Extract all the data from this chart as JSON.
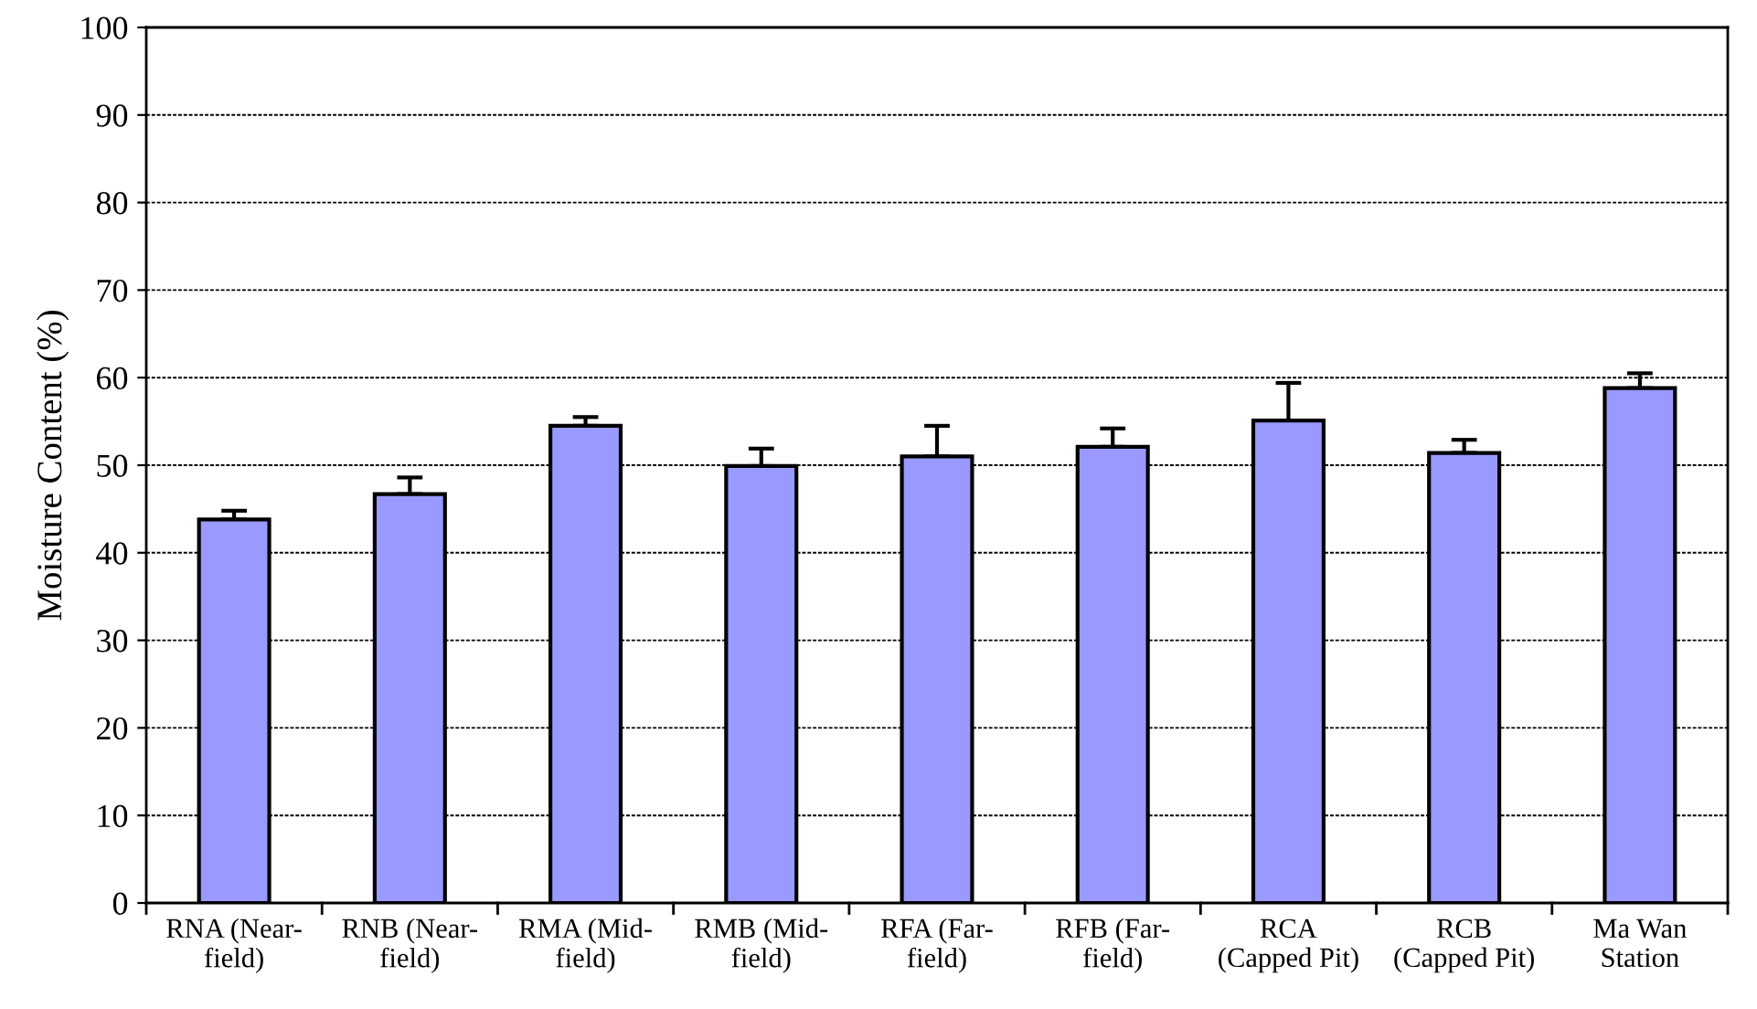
{
  "chart_data": {
    "type": "bar",
    "ylabel": "Moisture Content (%)",
    "categories": [
      "RNA (Near-\nfield)",
      "RNB (Near-\nfield)",
      "RMA (Mid-\nfield)",
      "RMB (Mid-\nfield)",
      "RFA (Far-\nfield)",
      "RFB (Far-\nfield)",
      "RCA\n(Capped Pit)",
      "RCB\n(Capped Pit)",
      "Ma Wan\nStation"
    ],
    "values": [
      43.8,
      46.7,
      54.5,
      49.9,
      51.0,
      52.1,
      55.1,
      51.4,
      58.8
    ],
    "errors": [
      [
        43.8,
        44.8
      ],
      [
        46.7,
        48.6
      ],
      [
        54.5,
        55.5
      ],
      [
        49.9,
        51.9
      ],
      [
        51.0,
        54.5
      ],
      [
        52.1,
        54.2
      ],
      [
        55.1,
        59.4
      ],
      [
        51.4,
        52.9
      ],
      [
        58.8,
        60.5
      ]
    ],
    "color": "#9999ff",
    "ylim": [
      0,
      100
    ],
    "yticks": [
      0,
      10,
      20,
      30,
      40,
      50,
      60,
      70,
      80,
      90,
      100
    ],
    "grid": "y"
  }
}
